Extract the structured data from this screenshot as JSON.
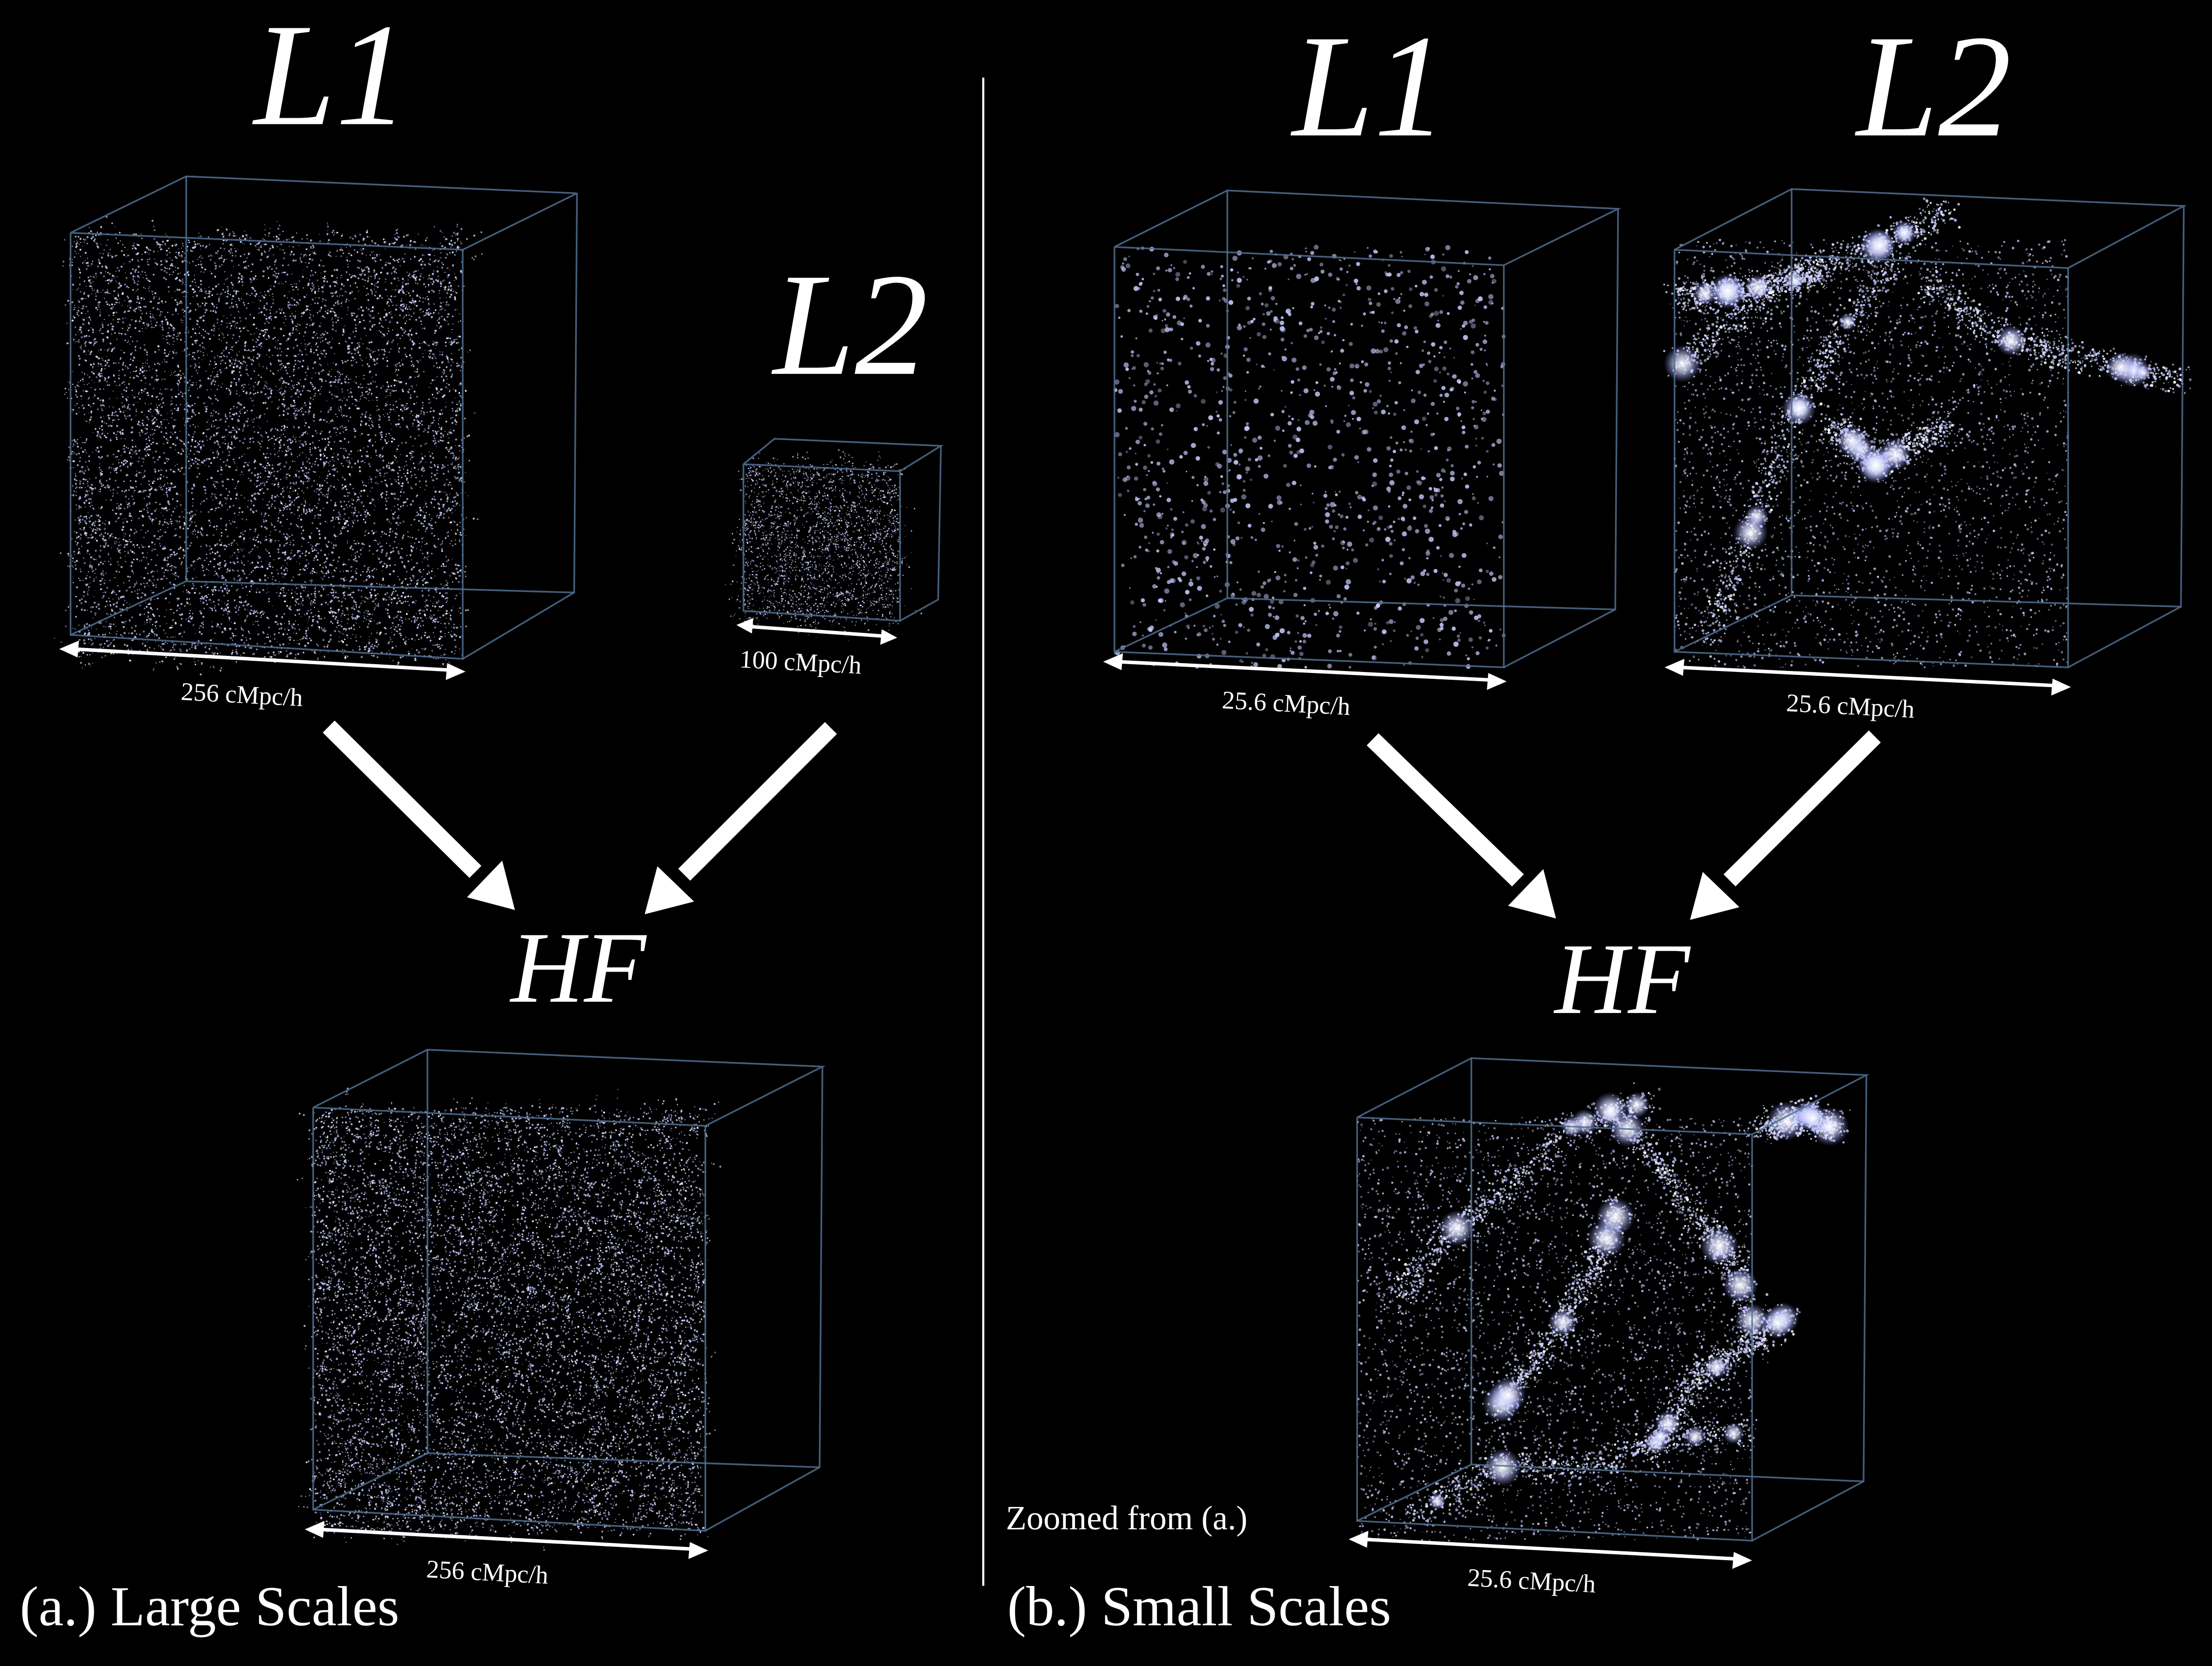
{
  "panel_a": {
    "caption": "(a.) Large Scales",
    "l1": {
      "label": "L1",
      "scale": "256 cMpc/h"
    },
    "l2": {
      "label": "L2",
      "scale": "100 cMpc/h"
    },
    "hf": {
      "label": "HF",
      "scale": "256 cMpc/h"
    }
  },
  "panel_b": {
    "caption": "(b.) Small Scales",
    "note": "Zoomed from (a.)",
    "l1": {
      "label": "L1",
      "scale": "25.6 cMpc/h"
    },
    "l2": {
      "label": "L2",
      "scale": "25.6 cMpc/h"
    },
    "hf": {
      "label": "HF",
      "scale": "25.6 cMpc/h"
    }
  },
  "colors": {
    "background": "#000000",
    "particles": "#c8ccff",
    "box_edges": "#4f6e8f",
    "text": "#ffffff"
  }
}
